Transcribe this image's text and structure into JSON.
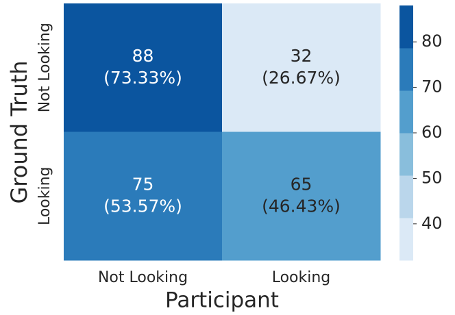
{
  "chart_data": {
    "type": "heatmap",
    "xlabel": "Participant",
    "ylabel": "Ground Truth",
    "x_categories": [
      "Not Looking",
      "Looking"
    ],
    "y_categories": [
      "Not Looking",
      "Looking"
    ],
    "values": [
      [
        88,
        32
      ],
      [
        75,
        65
      ]
    ],
    "percent_labels": [
      [
        "(73.33%)",
        "(26.67%)"
      ],
      [
        "(53.57%)",
        "(46.43%)"
      ]
    ],
    "colors": [
      "#dbe9f6",
      "#bad6eb",
      "#89bedc",
      "#539ecd",
      "#2b7bba",
      "#0b559f"
    ],
    "clim": [
      32,
      88
    ],
    "colorbar_ticks": [
      40,
      50,
      60,
      70,
      80
    ]
  }
}
